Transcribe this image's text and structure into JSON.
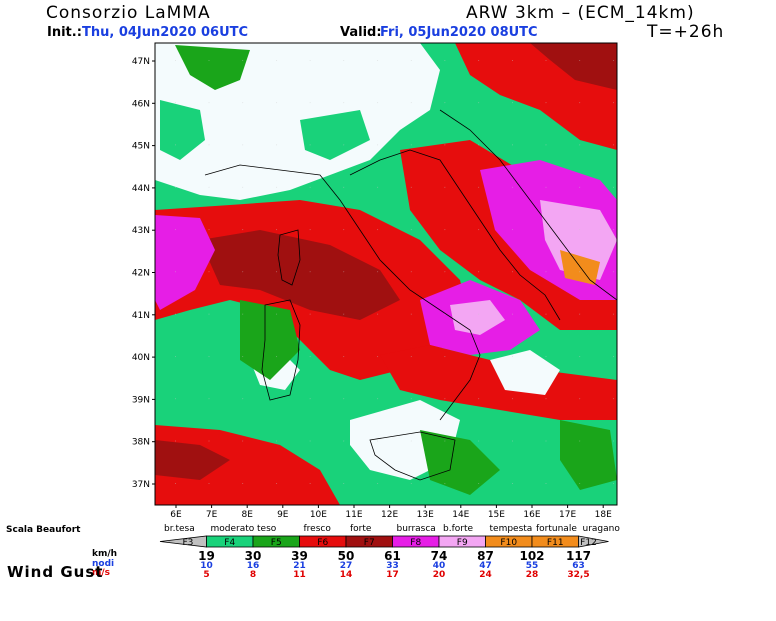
{
  "header": {
    "title": "Consorzio LaMMA",
    "model": "ARW 3km – (ECM_14km)",
    "init_label": "Init.:",
    "init_value": "Thu, 04Jun2020 06UTC",
    "valid_label": "Valid:",
    "valid_value": "Fri, 05Jun2020 08UTC",
    "forecast_step": "T=+26h"
  },
  "map": {
    "lat_labels": [
      "47N",
      "46N",
      "45N",
      "44N",
      "43N",
      "42N",
      "41N",
      "40N",
      "39N",
      "38N",
      "37N"
    ],
    "lon_labels": [
      "6E",
      "7E",
      "8E",
      "9E",
      "10E",
      "11E",
      "12E",
      "13E",
      "14E",
      "15E",
      "16E",
      "17E",
      "18E"
    ],
    "colors": {
      "water_white": "#f4fbfd",
      "f4": "#19d27a",
      "f5": "#1aa51a",
      "f6": "#e60d0d",
      "f7": "#a01010",
      "f8": "#e61ee6",
      "f9": "#f3a6f3",
      "f10": "#f28c1c"
    }
  },
  "legend": {
    "scale_label": "Scala Beaufort",
    "descriptions": [
      "br.tesa",
      "moderato",
      "teso",
      "fresco",
      "forte",
      "burrasca",
      "b.forte",
      "tempesta",
      "fortunale",
      "uragano"
    ],
    "classes": [
      {
        "label": "F3",
        "color": "#c0c0c0"
      },
      {
        "label": "F4",
        "color": "#19d27a"
      },
      {
        "label": "F5",
        "color": "#1aa51a"
      },
      {
        "label": "F6",
        "color": "#e60d0d"
      },
      {
        "label": "F7",
        "color": "#a01010"
      },
      {
        "label": "F8",
        "color": "#e61ee6"
      },
      {
        "label": "F9",
        "color": "#f3a6f3"
      },
      {
        "label": "F10",
        "color": "#f28c1c"
      },
      {
        "label": "F11",
        "color": "#f28c1c"
      },
      {
        "label": "F12",
        "color": "#c0c0c0"
      }
    ],
    "unit_kmh": "km/h",
    "unit_knots": "nodi",
    "unit_ms": "m/s",
    "wind_gust_label": "Wind Gust",
    "kmh": [
      "19",
      "30",
      "39",
      "50",
      "61",
      "74",
      "87",
      "102",
      "117"
    ],
    "knots": [
      "10",
      "16",
      "21",
      "27",
      "33",
      "40",
      "47",
      "55",
      "63"
    ],
    "ms": [
      "5",
      "8",
      "11",
      "14",
      "17",
      "20",
      "24",
      "28",
      "32,5"
    ]
  }
}
